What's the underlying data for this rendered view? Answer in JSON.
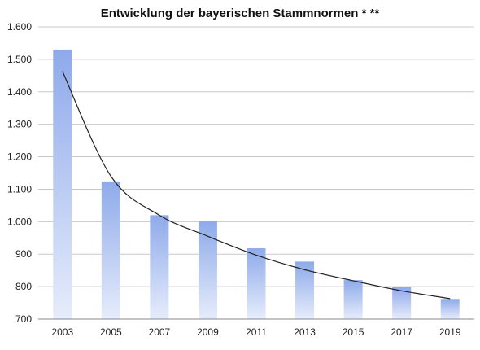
{
  "chart_data": {
    "type": "bar",
    "title": "Entwicklung der bayerischen Stammnormen * **",
    "categories": [
      "2003",
      "2005",
      "2007",
      "2009",
      "2011",
      "2013",
      "2015",
      "2017",
      "2019"
    ],
    "values": [
      1530,
      1124,
      1020,
      1001,
      918,
      877,
      820,
      798,
      762
    ],
    "ytick_labels": [
      "700",
      "800",
      "900",
      "1.000",
      "1.100",
      "1.200",
      "1.300",
      "1.400",
      "1.500",
      "1.600"
    ],
    "ylim": [
      700,
      1600
    ],
    "ytick_step": 100,
    "grid": true,
    "legend": "none",
    "trendline": {
      "type": "power",
      "values": [
        1463,
        1140,
        1020,
        955,
        897,
        852,
        818,
        787,
        763
      ]
    },
    "colors": {
      "bar_top": "#8eaaea",
      "bar_bottom": "#e6ecfb",
      "trendline": "#222222",
      "grid": "#c8c8c8",
      "axis": "#888888"
    }
  }
}
